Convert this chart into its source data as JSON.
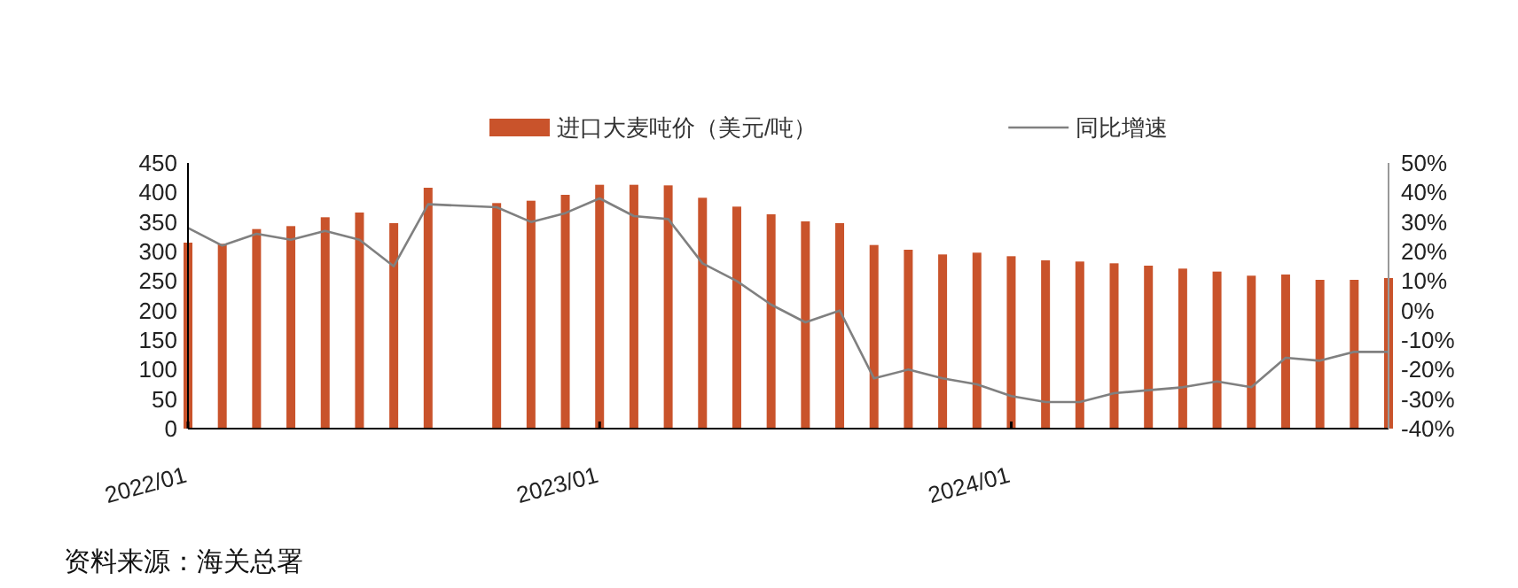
{
  "chart_data": {
    "type": "bar",
    "x": [
      "2022-01",
      "2022-02",
      "2022-03",
      "2022-04",
      "2022-05",
      "2022-06",
      "2022-07",
      "2022-08",
      "2022-09",
      "2022-10",
      "2022-11",
      "2022-12",
      "2023-01",
      "2023-02",
      "2023-03",
      "2023-04",
      "2023-05",
      "2023-06",
      "2023-07",
      "2023-08",
      "2023-09",
      "2023-10",
      "2023-11",
      "2023-12",
      "2024-01",
      "2024-02",
      "2024-03",
      "2024-04",
      "2024-05",
      "2024-06",
      "2024-07",
      "2024-08",
      "2024-09",
      "2024-10",
      "2024-11",
      "2024-12"
    ],
    "series": [
      {
        "name": "进口大麦吨价（美元/吨）",
        "color": "#c9532b",
        "values": [
          315,
          313,
          338,
          343,
          358,
          366,
          348,
          408,
          null,
          382,
          386,
          396,
          413,
          413,
          412,
          391,
          376,
          363,
          351,
          348,
          311,
          303,
          295,
          298,
          292,
          285,
          283,
          280,
          276,
          271,
          266,
          259,
          261,
          252,
          252,
          255
        ]
      },
      {
        "name": "同比增速",
        "type": "line",
        "axis": "y2",
        "color": "#808080",
        "values": [
          28,
          22,
          26,
          24,
          27,
          24,
          15,
          36,
          null,
          35,
          30,
          33,
          38,
          32,
          31,
          16,
          10,
          2,
          -4,
          0,
          -23,
          -20,
          -23,
          -25,
          -29,
          -31,
          -31,
          -28,
          -27,
          -26,
          -24,
          -26,
          -16,
          -17,
          -14,
          -14
        ]
      }
    ],
    "xlim": [
      "2022-01",
      "2024-12"
    ],
    "xticks": [
      {
        "value": "2022-01",
        "label": "2022/01"
      },
      {
        "value": "2023-01",
        "label": "2023/01"
      },
      {
        "value": "2024-01",
        "label": "2024/01"
      }
    ],
    "ylim": [
      0,
      450
    ],
    "yticks": [
      0,
      50,
      100,
      150,
      200,
      250,
      300,
      350,
      400,
      450
    ],
    "y2lim": [
      -40,
      50
    ],
    "y2ticks": [
      {
        "value": -40,
        "label": "-40%"
      },
      {
        "value": -30,
        "label": "-30%"
      },
      {
        "value": -20,
        "label": "-20%"
      },
      {
        "value": -10,
        "label": "-10%"
      },
      {
        "value": 0,
        "label": "0%"
      },
      {
        "value": 10,
        "label": "10%"
      },
      {
        "value": 20,
        "label": "20%"
      },
      {
        "value": 30,
        "label": "30%"
      },
      {
        "value": 40,
        "label": "40%"
      },
      {
        "value": 50,
        "label": "50%"
      }
    ],
    "legend": "top",
    "grid": false,
    "annotations": [
      "资料来源：海关总署"
    ]
  }
}
